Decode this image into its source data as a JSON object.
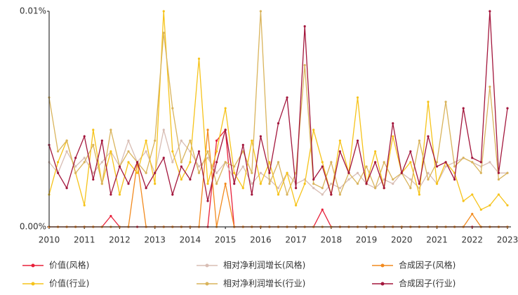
{
  "chart_data": {
    "type": "line",
    "x": [
      2010,
      2010.25,
      2010.5,
      2010.75,
      2011,
      2011.25,
      2011.5,
      2011.75,
      2012,
      2012.25,
      2012.5,
      2012.75,
      2013,
      2013.25,
      2013.5,
      2013.75,
      2014,
      2014.25,
      2014.5,
      2014.75,
      2015,
      2015.25,
      2015.5,
      2015.75,
      2016,
      2016.25,
      2016.5,
      2016.75,
      2017,
      2017.25,
      2017.5,
      2017.75,
      2018,
      2018.25,
      2018.5,
      2018.75,
      2019,
      2019.25,
      2019.5,
      2019.75,
      2020,
      2020.25,
      2020.5,
      2020.75,
      2021,
      2021.25,
      2021.5,
      2021.75,
      2022,
      2022.25,
      2022.5,
      2022.75,
      2023
    ],
    "xlim": [
      2010,
      2023.1
    ],
    "xticks": [
      2010,
      2011,
      2012,
      2013,
      2014,
      2015,
      2016,
      2017,
      2018,
      2019,
      2020,
      2021,
      2022,
      2023
    ],
    "ylim": [
      0,
      0.01
    ],
    "yticks": [
      {
        "value": 0,
        "label": "0.00%"
      },
      {
        "value": 0.01,
        "label": "0.01%"
      }
    ],
    "series": [
      {
        "name": "价值(风格)",
        "color": "#e8203a",
        "values": [
          0,
          0,
          0,
          0,
          0,
          0,
          0,
          0.0005,
          0,
          0,
          0,
          0,
          0,
          0,
          0,
          0,
          0,
          0,
          0,
          0.004,
          0.0045,
          0,
          0,
          0,
          0,
          0,
          0,
          0,
          0,
          0,
          0,
          0.0008,
          0,
          0,
          0,
          0,
          0,
          0,
          0,
          0,
          0,
          0,
          0,
          0,
          0,
          0,
          0,
          0,
          0,
          0,
          0,
          0,
          0
        ]
      },
      {
        "name": "相对净利润增长(风格)",
        "color": "#d8bdb4",
        "values": [
          0.003,
          0.0025,
          0.0035,
          0.0028,
          0.0032,
          0.0025,
          0.003,
          0.0035,
          0.0028,
          0.004,
          0.003,
          0.0035,
          0.0025,
          0.0045,
          0.003,
          0.004,
          0.0035,
          0.0028,
          0.0032,
          0.0025,
          0.003,
          0.0022,
          0.0028,
          0.002,
          0.0025,
          0.0022,
          0.0018,
          0.0025,
          0.002,
          0.0022,
          0.0018,
          0.0015,
          0.002,
          0.0018,
          0.0022,
          0.0025,
          0.002,
          0.0018,
          0.0022,
          0.002,
          0.0025,
          0.0022,
          0.0018,
          0.0025,
          0.002,
          0.0028,
          0.003,
          0.0032,
          0.003,
          0.0028,
          0.003,
          0.0025,
          0.0025
        ]
      },
      {
        "name": "合成因子(风格)",
        "color": "#f28a1e",
        "values": [
          0,
          0,
          0,
          0,
          0,
          0,
          0,
          0,
          0,
          0,
          0.003,
          0,
          0,
          0,
          0,
          0,
          0,
          0,
          0.0045,
          0,
          0.002,
          0,
          0,
          0,
          0,
          0,
          0,
          0,
          0,
          0,
          0,
          0,
          0,
          0,
          0,
          0,
          0,
          0,
          0,
          0,
          0,
          0,
          0,
          0,
          0,
          0,
          0,
          0,
          0.0006,
          0,
          0,
          0,
          0
        ]
      },
      {
        "name": "价值(行业)",
        "color": "#f6c31a",
        "values": [
          0.0015,
          0.003,
          0.004,
          0.0025,
          0.001,
          0.0045,
          0.002,
          0.0035,
          0.0015,
          0.003,
          0.0025,
          0.004,
          0.002,
          0.01,
          0.0035,
          0.0022,
          0.003,
          0.0078,
          0.002,
          0.0035,
          0.0055,
          0.0025,
          0.0018,
          0.004,
          0.002,
          0.003,
          0.0015,
          0.0025,
          0.001,
          0.002,
          0.0045,
          0.003,
          0.0015,
          0.004,
          0.0025,
          0.006,
          0.002,
          0.0035,
          0.0018,
          0.0042,
          0.0025,
          0.003,
          0.0015,
          0.0058,
          0.002,
          0.003,
          0.0025,
          0.0012,
          0.0015,
          0.0008,
          0.001,
          0.0015,
          0.001
        ]
      },
      {
        "name": "相对净利润增长(行业)",
        "color": "#d9b45c",
        "values": [
          0.006,
          0.0035,
          0.004,
          0.0025,
          0.003,
          0.0038,
          0.002,
          0.0045,
          0.0028,
          0.0035,
          0.003,
          0.0025,
          0.004,
          0.009,
          0.0055,
          0.003,
          0.004,
          0.0025,
          0.0035,
          0.002,
          0.003,
          0.0028,
          0.0035,
          0.0025,
          0.01,
          0.002,
          0.003,
          0.0015,
          0.0025,
          0.0075,
          0.002,
          0.0018,
          0.003,
          0.0015,
          0.0025,
          0.002,
          0.0028,
          0.0018,
          0.003,
          0.0022,
          0.0025,
          0.0018,
          0.004,
          0.0022,
          0.003,
          0.0058,
          0.0028,
          0.0032,
          0.003,
          0.0025,
          0.0065,
          0.0022,
          0.0025
        ]
      },
      {
        "name": "合成因子(行业)",
        "color": "#a3163c",
        "values": [
          0.0038,
          0.0025,
          0.0018,
          0.0032,
          0.0042,
          0.0022,
          0.004,
          0.0015,
          0.0028,
          0.002,
          0.003,
          0.0018,
          0.0025,
          0.0032,
          0.0015,
          0.0028,
          0.0022,
          0.0035,
          0.0012,
          0.003,
          0.0045,
          0.002,
          0.0038,
          0.0015,
          0.0042,
          0.0025,
          0.0048,
          0.006,
          0.0018,
          0.0093,
          0.0022,
          0.0028,
          0.0015,
          0.0035,
          0.0025,
          0.004,
          0.002,
          0.003,
          0.0018,
          0.0048,
          0.0025,
          0.0035,
          0.002,
          0.0042,
          0.0028,
          0.003,
          0.0022,
          0.0055,
          0.0032,
          0.003,
          0.01,
          0.0025,
          0.0055
        ]
      }
    ],
    "legend": "bottom"
  }
}
